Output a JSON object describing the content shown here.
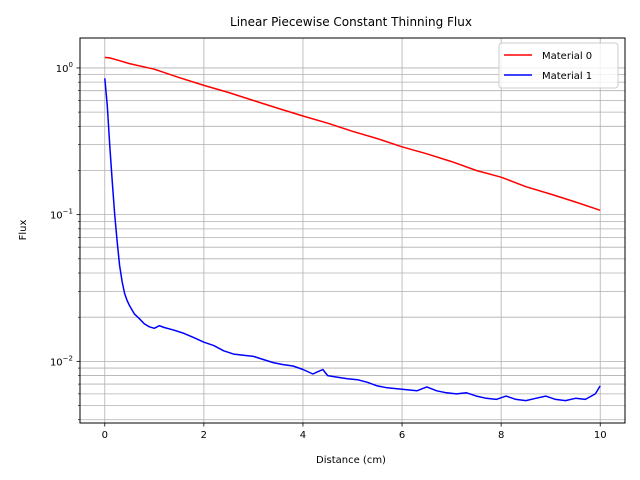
{
  "chart_data": {
    "type": "line",
    "title": "Linear Piecewise Constant Thinning Flux",
    "xlabel": "Distance (cm)",
    "ylabel": "Flux",
    "xlim": [
      -0.5,
      10.5
    ],
    "ylim": [
      0.0038,
      1.6
    ],
    "yscale": "log",
    "grid": true,
    "legend_position": "top-right",
    "x_ticks": [
      0,
      2,
      4,
      6,
      8,
      10
    ],
    "x_tick_labels": [
      "0",
      "2",
      "4",
      "6",
      "8",
      "10"
    ],
    "y_major_ticks": [
      0.01,
      0.1,
      1
    ],
    "y_tick_labels": [
      {
        "base": "10",
        "exp": "−2"
      },
      {
        "base": "10",
        "exp": "−1"
      },
      {
        "base": "10",
        "exp": "0"
      }
    ],
    "y_minor_ticks": [
      0.004,
      0.005,
      0.006,
      0.007,
      0.008,
      0.009,
      0.02,
      0.03,
      0.04,
      0.05,
      0.06,
      0.07,
      0.08,
      0.09,
      0.2,
      0.3,
      0.4,
      0.5,
      0.6,
      0.7,
      0.8,
      0.9
    ],
    "series": [
      {
        "name": "Material 0",
        "color": "#ff0000",
        "x": [
          0,
          0.1,
          0.3,
          0.5,
          1,
          1.5,
          2,
          2.5,
          3,
          3.5,
          4,
          4.5,
          5,
          5.5,
          6,
          6.5,
          7,
          7.5,
          8,
          8.5,
          9,
          9.5,
          10
        ],
        "y": [
          1.18,
          1.17,
          1.12,
          1.07,
          0.98,
          0.86,
          0.76,
          0.68,
          0.6,
          0.53,
          0.47,
          0.42,
          0.37,
          0.33,
          0.29,
          0.26,
          0.23,
          0.2,
          0.18,
          0.155,
          0.138,
          0.122,
          0.107
        ]
      },
      {
        "name": "Material 1",
        "color": "#0000ff",
        "x": [
          0,
          0.05,
          0.1,
          0.15,
          0.2,
          0.25,
          0.3,
          0.35,
          0.4,
          0.45,
          0.5,
          0.6,
          0.7,
          0.8,
          0.9,
          1.0,
          1.1,
          1.2,
          1.4,
          1.6,
          1.8,
          2.0,
          2.2,
          2.4,
          2.6,
          2.8,
          3.0,
          3.2,
          3.4,
          3.6,
          3.8,
          4.0,
          4.2,
          4.3,
          4.4,
          4.5,
          4.7,
          4.9,
          5.1,
          5.3,
          5.5,
          5.7,
          5.9,
          6.1,
          6.3,
          6.5,
          6.7,
          6.9,
          7.1,
          7.3,
          7.5,
          7.7,
          7.9,
          8.1,
          8.3,
          8.5,
          8.7,
          8.9,
          9.1,
          9.3,
          9.5,
          9.7,
          9.9,
          10.0
        ],
        "y": [
          0.85,
          0.55,
          0.3,
          0.17,
          0.1,
          0.065,
          0.045,
          0.035,
          0.029,
          0.026,
          0.024,
          0.021,
          0.0195,
          0.018,
          0.0172,
          0.0168,
          0.0175,
          0.017,
          0.0163,
          0.0155,
          0.0145,
          0.0135,
          0.0128,
          0.0118,
          0.0112,
          0.011,
          0.0108,
          0.0103,
          0.0098,
          0.0095,
          0.0093,
          0.0088,
          0.0082,
          0.0085,
          0.0088,
          0.008,
          0.0078,
          0.0076,
          0.0075,
          0.0072,
          0.0068,
          0.0066,
          0.0065,
          0.0064,
          0.0063,
          0.0067,
          0.0063,
          0.0061,
          0.006,
          0.0061,
          0.0058,
          0.0056,
          0.0055,
          0.0058,
          0.0055,
          0.0054,
          0.0056,
          0.0058,
          0.0055,
          0.0054,
          0.0056,
          0.0055,
          0.006,
          0.0068
        ]
      }
    ]
  }
}
